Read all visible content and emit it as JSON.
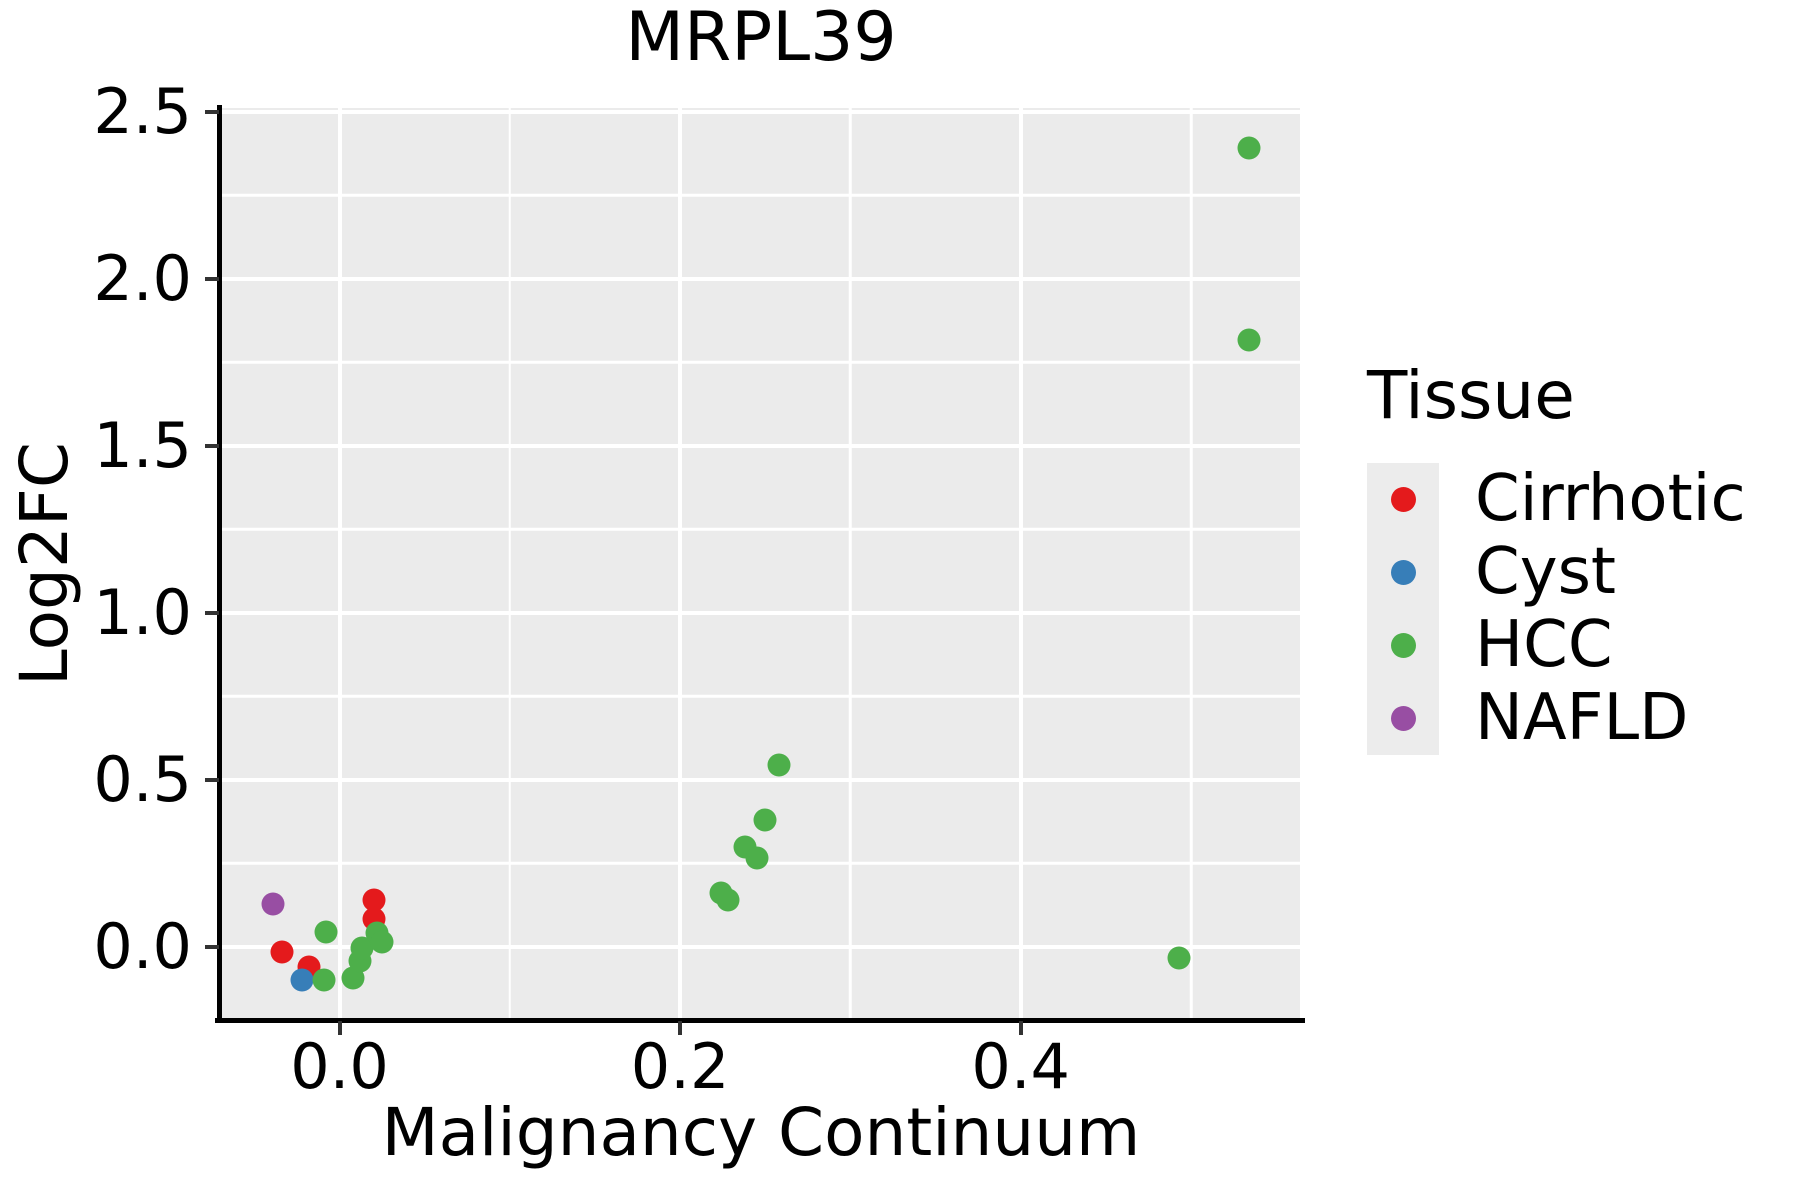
{
  "title": "MRPL39",
  "axes": {
    "x_label": "Malignancy Continuum",
    "y_label": "Log2FC"
  },
  "legend": {
    "title": "Tissue",
    "entries": [
      {
        "label": "Cirrhotic",
        "color": "#E41A1C"
      },
      {
        "label": "Cyst",
        "color": "#377EB8"
      },
      {
        "label": "HCC",
        "color": "#4DAF4A"
      },
      {
        "label": "NAFLD",
        "color": "#984EA3"
      }
    ]
  },
  "colors": {
    "panel_background": "#EBEBEB",
    "gridline": "#FFFFFF",
    "axis_spine": "#000000",
    "legend_key_background": "#ECECEC"
  },
  "chart_data": {
    "type": "scatter",
    "title": "MRPL39",
    "xlabel": "Malignancy Continuum",
    "ylabel": "Log2FC",
    "xlim": [
      -0.069,
      0.564
    ],
    "ylim": [
      -0.219,
      2.512
    ],
    "x_ticks": [
      0.0,
      0.2,
      0.4
    ],
    "x_tick_labels": [
      "0.0",
      "0.2",
      "0.4"
    ],
    "x_minor_gridlines": [
      0.1,
      0.3,
      0.5
    ],
    "y_ticks": [
      0.0,
      0.5,
      1.0,
      1.5,
      2.0,
      2.5
    ],
    "y_tick_labels": [
      "0.0",
      "0.5",
      "1.0",
      "1.5",
      "2.0",
      "2.5"
    ],
    "y_minor_gridlines": [
      0.25,
      0.75,
      1.25,
      1.75,
      2.25
    ],
    "grid": "major and minor white gridlines on gray panel",
    "legend_position": "right",
    "series": [
      {
        "name": "Cirrhotic",
        "color": "#E41A1C",
        "points": [
          [
            -0.034,
            -0.015
          ],
          [
            -0.018,
            -0.061
          ],
          [
            0.02,
            0.141
          ],
          [
            0.02,
            0.083
          ]
        ]
      },
      {
        "name": "Cyst",
        "color": "#377EB8",
        "points": [
          [
            -0.022,
            -0.098
          ]
        ]
      },
      {
        "name": "HCC",
        "color": "#4DAF4A",
        "points": [
          [
            -0.008,
            0.046
          ],
          [
            -0.009,
            -0.099
          ],
          [
            0.008,
            -0.092
          ],
          [
            0.012,
            -0.042
          ],
          [
            0.013,
            -0.004
          ],
          [
            0.022,
            0.041
          ],
          [
            0.025,
            0.016
          ],
          [
            0.224,
            0.162
          ],
          [
            0.228,
            0.14
          ],
          [
            0.238,
            0.3
          ],
          [
            0.245,
            0.266
          ],
          [
            0.25,
            0.379
          ],
          [
            0.258,
            0.544
          ],
          [
            0.493,
            -0.034
          ],
          [
            0.534,
            2.392
          ],
          [
            0.534,
            1.817
          ]
        ]
      },
      {
        "name": "NAFLD",
        "color": "#984EA3",
        "points": [
          [
            -0.039,
            0.129
          ]
        ]
      }
    ]
  }
}
